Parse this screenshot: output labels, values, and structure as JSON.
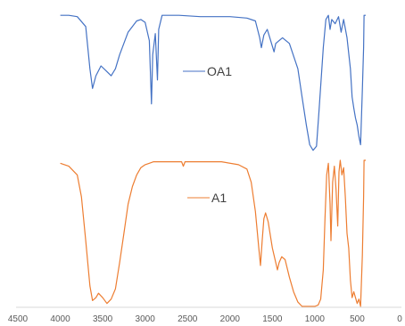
{
  "chart_data": {
    "type": "line",
    "title": "",
    "xlabel": "",
    "ylabel": "",
    "xlim": [
      4500,
      0
    ],
    "x_reversed": true,
    "y_axis_visible": false,
    "grid": false,
    "x_ticks": [
      4500,
      4000,
      3500,
      3000,
      2500,
      2000,
      1500,
      1000,
      500,
      0
    ],
    "tick_labels": [
      "4500",
      "4000",
      "3500",
      "3000",
      "2500",
      "2000",
      "1500",
      "1000",
      "500",
      "0"
    ],
    "legend_placement": "inline",
    "series": [
      {
        "name": "OA1",
        "color": "#4472C4",
        "points": [
          [
            4000,
            0.98
          ],
          [
            3900,
            0.98
          ],
          [
            3800,
            0.97
          ],
          [
            3700,
            0.9
          ],
          [
            3650,
            0.6
          ],
          [
            3620,
            0.46
          ],
          [
            3580,
            0.55
          ],
          [
            3520,
            0.62
          ],
          [
            3450,
            0.58
          ],
          [
            3400,
            0.55
          ],
          [
            3350,
            0.6
          ],
          [
            3300,
            0.7
          ],
          [
            3200,
            0.86
          ],
          [
            3100,
            0.94
          ],
          [
            3050,
            0.95
          ],
          [
            3000,
            0.93
          ],
          [
            2950,
            0.8
          ],
          [
            2925,
            0.35
          ],
          [
            2910,
            0.7
          ],
          [
            2880,
            0.85
          ],
          [
            2855,
            0.52
          ],
          [
            2840,
            0.88
          ],
          [
            2800,
            0.98
          ],
          [
            2600,
            0.98
          ],
          [
            2350,
            0.97
          ],
          [
            2000,
            0.97
          ],
          [
            1800,
            0.96
          ],
          [
            1700,
            0.94
          ],
          [
            1650,
            0.82
          ],
          [
            1630,
            0.75
          ],
          [
            1600,
            0.84
          ],
          [
            1560,
            0.88
          ],
          [
            1520,
            0.8
          ],
          [
            1480,
            0.72
          ],
          [
            1460,
            0.78
          ],
          [
            1420,
            0.8
          ],
          [
            1380,
            0.82
          ],
          [
            1300,
            0.78
          ],
          [
            1200,
            0.6
          ],
          [
            1150,
            0.4
          ],
          [
            1100,
            0.2
          ],
          [
            1060,
            0.06
          ],
          [
            1020,
            0.02
          ],
          [
            980,
            0.05
          ],
          [
            950,
            0.3
          ],
          [
            900,
            0.75
          ],
          [
            870,
            0.95
          ],
          [
            840,
            0.98
          ],
          [
            820,
            0.88
          ],
          [
            800,
            0.95
          ],
          [
            760,
            0.92
          ],
          [
            720,
            0.97
          ],
          [
            690,
            0.86
          ],
          [
            660,
            0.95
          ],
          [
            620,
            0.82
          ],
          [
            580,
            0.6
          ],
          [
            560,
            0.4
          ],
          [
            540,
            0.32
          ],
          [
            520,
            0.25
          ],
          [
            500,
            0.2
          ],
          [
            480,
            0.12
          ],
          [
            460,
            0.06
          ],
          [
            440,
            0.45
          ],
          [
            425,
            0.75
          ],
          [
            420,
            0.98
          ],
          [
            400,
            0.98
          ]
        ]
      },
      {
        "name": "A1",
        "color": "#ED7D31",
        "points": [
          [
            4000,
            0.98
          ],
          [
            3900,
            0.96
          ],
          [
            3800,
            0.9
          ],
          [
            3750,
            0.75
          ],
          [
            3700,
            0.45
          ],
          [
            3650,
            0.14
          ],
          [
            3620,
            0.04
          ],
          [
            3580,
            0.06
          ],
          [
            3550,
            0.09
          ],
          [
            3500,
            0.06
          ],
          [
            3450,
            0.02
          ],
          [
            3400,
            0.05
          ],
          [
            3350,
            0.12
          ],
          [
            3300,
            0.3
          ],
          [
            3250,
            0.5
          ],
          [
            3200,
            0.7
          ],
          [
            3150,
            0.82
          ],
          [
            3100,
            0.9
          ],
          [
            3050,
            0.95
          ],
          [
            3000,
            0.97
          ],
          [
            2950,
            0.98
          ],
          [
            2900,
            0.99
          ],
          [
            2700,
            0.99
          ],
          [
            2570,
            0.99
          ],
          [
            2550,
            0.96
          ],
          [
            2530,
            0.99
          ],
          [
            2300,
            0.99
          ],
          [
            2100,
            0.99
          ],
          [
            1900,
            0.97
          ],
          [
            1800,
            0.94
          ],
          [
            1750,
            0.85
          ],
          [
            1700,
            0.65
          ],
          [
            1660,
            0.4
          ],
          [
            1640,
            0.28
          ],
          [
            1620,
            0.45
          ],
          [
            1600,
            0.6
          ],
          [
            1580,
            0.64
          ],
          [
            1550,
            0.58
          ],
          [
            1500,
            0.4
          ],
          [
            1460,
            0.3
          ],
          [
            1440,
            0.25
          ],
          [
            1420,
            0.3
          ],
          [
            1390,
            0.34
          ],
          [
            1350,
            0.32
          ],
          [
            1300,
            0.2
          ],
          [
            1250,
            0.1
          ],
          [
            1200,
            0.03
          ],
          [
            1150,
            0.0
          ],
          [
            1100,
            0.0
          ],
          [
            1000,
            0.0
          ],
          [
            960,
            0.01
          ],
          [
            930,
            0.05
          ],
          [
            900,
            0.25
          ],
          [
            880,
            0.6
          ],
          [
            860,
            0.9
          ],
          [
            840,
            0.98
          ],
          [
            820,
            0.7
          ],
          [
            810,
            0.45
          ],
          [
            790,
            0.85
          ],
          [
            770,
            0.96
          ],
          [
            750,
            0.8
          ],
          [
            730,
            0.55
          ],
          [
            715,
            0.92
          ],
          [
            700,
            1.0
          ],
          [
            680,
            0.9
          ],
          [
            660,
            0.95
          ],
          [
            640,
            0.75
          ],
          [
            620,
            0.5
          ],
          [
            600,
            0.4
          ],
          [
            580,
            0.18
          ],
          [
            560,
            0.06
          ],
          [
            540,
            0.1
          ],
          [
            520,
            0.06
          ],
          [
            500,
            0.02
          ],
          [
            480,
            0.05
          ],
          [
            460,
            0.0
          ],
          [
            440,
            0.35
          ],
          [
            425,
            0.75
          ],
          [
            420,
            1.0
          ],
          [
            400,
            1.0
          ]
        ]
      }
    ]
  }
}
